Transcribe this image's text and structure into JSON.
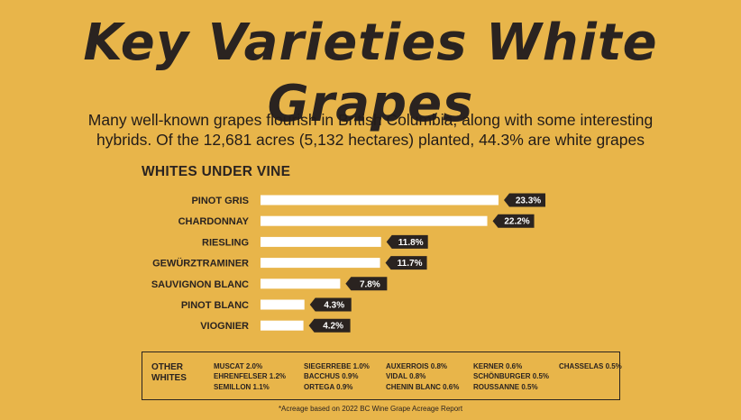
{
  "title": "Key Varieties White Grapes",
  "subtitle_line1": "Many well-known grapes flourish in British Columbia, along with some interesting",
  "subtitle_line2": "hybrids. Of the 12,681  acres (5,132 hectares) planted, 44.3% are white grapes",
  "chart_data": {
    "type": "bar",
    "orientation": "horizontal",
    "title": "WHITES UNDER VINE",
    "categories": [
      "PINOT GRIS",
      "CHARDONNAY",
      "RIESLING",
      "GEWÜRZTRAMINER",
      "SAUVIGNON BLANC",
      "PINOT BLANC",
      "VIOGNIER"
    ],
    "values": [
      23.3,
      22.2,
      11.8,
      11.7,
      7.8,
      4.3,
      4.2
    ],
    "data_labels": [
      "23.3%",
      "22.2%",
      "11.8%",
      "11.7%",
      "7.8%",
      "4.3%",
      "4.2%"
    ],
    "xlim": [
      0,
      23.3
    ],
    "grid": false,
    "bar_color": "#FFFFFF",
    "label_bg_color": "#2A2320"
  },
  "other_whites": {
    "label_line1": "OTHER",
    "label_line2": "WHITES",
    "columns": [
      [
        "MUSCAT 2.0%",
        "EHRENFELSER 1.2%",
        "SEMILLON 1.1%"
      ],
      [
        "SIEGERREBE 1.0%",
        "BACCHUS 0.9%",
        "ORTEGA 0.9%"
      ],
      [
        "AUXERROIS 0.8%",
        "VIDAL 0.8%",
        "CHENIN BLANC 0.6%"
      ],
      [
        "KERNER 0.6%",
        "SCHÖNBURGER 0.5%",
        "ROUSSANNE 0.5%"
      ],
      [
        "CHASSELAS 0.5%"
      ]
    ]
  },
  "footnote": "*Acreage based on 2022  BC Wine Grape Acreage Report",
  "colors": {
    "background": "#E8B54A",
    "text": "#2A2320",
    "bar": "#FFFFFF"
  }
}
